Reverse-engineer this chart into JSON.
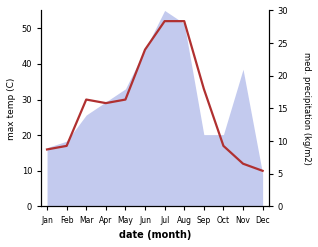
{
  "months": [
    "Jan",
    "Feb",
    "Mar",
    "Apr",
    "May",
    "Jun",
    "Jul",
    "Aug",
    "Sep",
    "Oct",
    "Nov",
    "Dec"
  ],
  "temperature": [
    16,
    17,
    30,
    29,
    30,
    44,
    52,
    52,
    33,
    17,
    12,
    10
  ],
  "precipitation": [
    9,
    10,
    14,
    16,
    18,
    24,
    30,
    28,
    11,
    11,
    21,
    5
  ],
  "temp_color": "#b03030",
  "precip_color": "#aab4e8",
  "temp_ylim": [
    0,
    55
  ],
  "precip_ylim": [
    0,
    30
  ],
  "temp_yticks": [
    0,
    10,
    20,
    30,
    40,
    50
  ],
  "precip_yticks": [
    0,
    5,
    10,
    15,
    20,
    25,
    30
  ],
  "ylabel_left": "max temp (C)",
  "ylabel_right": "med. precipitation (kg/m2)",
  "xlabel": "date (month)",
  "bg_color": "#ffffff"
}
